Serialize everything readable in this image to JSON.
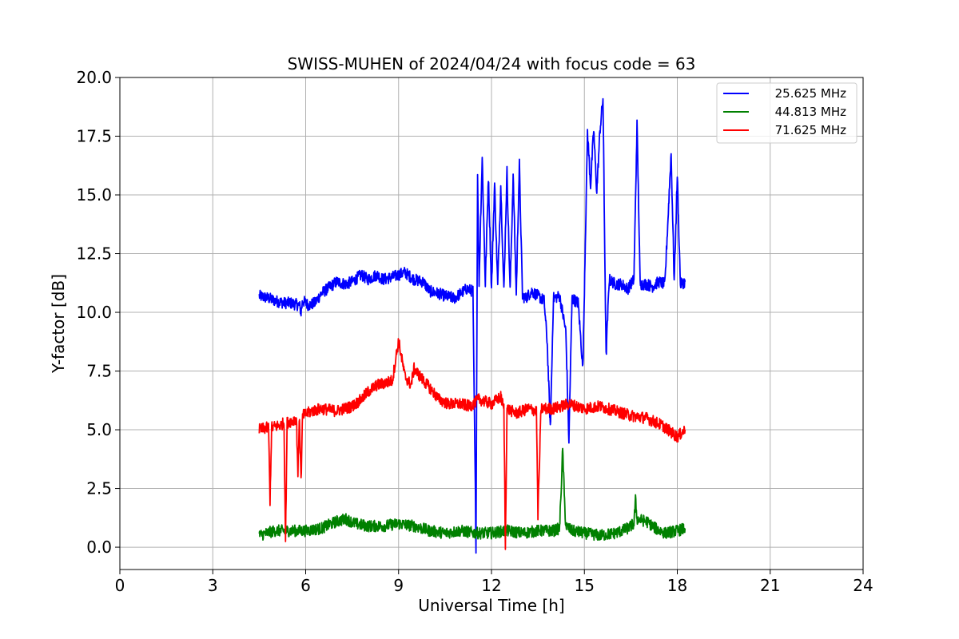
{
  "chart_data": {
    "type": "line",
    "title": "SWISS-MUHEN of 2024/04/24 with focus code = 63",
    "xlabel": "Universal Time [h]",
    "ylabel": "Y-factor [dB]",
    "xlim": [
      0,
      24
    ],
    "ylim": [
      -0.95,
      20.0
    ],
    "xticks": [
      0,
      3,
      6,
      9,
      12,
      15,
      18,
      21,
      24
    ],
    "xtick_labels": [
      "0",
      "3",
      "6",
      "9",
      "12",
      "15",
      "18",
      "21",
      "24"
    ],
    "yticks": [
      0.0,
      2.5,
      5.0,
      7.5,
      10.0,
      12.5,
      15.0,
      17.5,
      20.0
    ],
    "ytick_labels": [
      "0.0",
      "2.5",
      "5.0",
      "7.5",
      "10.0",
      "12.5",
      "15.0",
      "17.5",
      "20.0"
    ],
    "grid": true,
    "legend_position": "top-right",
    "series": [
      {
        "name": "25.625 MHz",
        "color": "#0000ff",
        "x": [
          4.5,
          4.8,
          5.0,
          5.3,
          5.5,
          5.8,
          5.85,
          5.9,
          6.1,
          6.3,
          6.5,
          6.8,
          7.0,
          7.3,
          7.5,
          7.8,
          8.0,
          8.3,
          8.5,
          8.8,
          9.0,
          9.2,
          9.5,
          9.8,
          10.0,
          10.3,
          10.5,
          10.8,
          11.0,
          11.2,
          11.4,
          11.5,
          11.55,
          11.6,
          11.7,
          11.8,
          11.9,
          12.0,
          12.1,
          12.2,
          12.3,
          12.4,
          12.5,
          12.6,
          12.7,
          12.8,
          12.9,
          13.0,
          13.1,
          13.3,
          13.5,
          13.7,
          13.8,
          13.9,
          14.0,
          14.2,
          14.4,
          14.5,
          14.6,
          14.8,
          14.95,
          15.1,
          15.2,
          15.3,
          15.4,
          15.5,
          15.6,
          15.7,
          15.8,
          16.0,
          16.2,
          16.4,
          16.6,
          16.7,
          16.8,
          17.0,
          17.2,
          17.4,
          17.6,
          17.8,
          17.9,
          18.0,
          18.1,
          18.25
        ],
        "y": [
          10.7,
          10.6,
          10.5,
          10.4,
          10.4,
          10.3,
          10.0,
          10.5,
          10.3,
          10.4,
          10.8,
          11.1,
          11.3,
          11.2,
          11.3,
          11.6,
          11.4,
          11.6,
          11.4,
          11.5,
          11.6,
          11.7,
          11.4,
          11.3,
          10.9,
          10.8,
          10.7,
          10.6,
          10.8,
          11.0,
          10.9,
          0.0,
          16.0,
          11.3,
          16.6,
          11.2,
          15.8,
          11.0,
          15.5,
          11.1,
          15.4,
          10.9,
          16.0,
          10.9,
          15.8,
          10.8,
          16.3,
          10.7,
          10.6,
          10.9,
          10.7,
          10.5,
          8.7,
          5.0,
          10.6,
          10.7,
          9.2,
          4.5,
          10.6,
          10.4,
          7.6,
          17.7,
          15.4,
          17.8,
          15.1,
          17.7,
          19.1,
          8.1,
          11.4,
          11.2,
          11.2,
          11.0,
          11.4,
          18.0,
          11.2,
          11.2,
          11.1,
          11.3,
          11.2,
          16.8,
          11.3,
          15.8,
          11.2,
          11.3
        ]
      },
      {
        "name": "44.813 MHz",
        "color": "#008000",
        "x": [
          4.5,
          5.0,
          5.5,
          6.0,
          6.5,
          7.0,
          7.3,
          7.6,
          8.0,
          8.5,
          9.0,
          9.5,
          10.0,
          10.5,
          11.0,
          11.5,
          12.0,
          12.5,
          13.0,
          13.5,
          14.0,
          14.2,
          14.3,
          14.35,
          14.4,
          14.6,
          15.0,
          15.5,
          16.0,
          16.4,
          16.6,
          16.65,
          16.7,
          17.0,
          17.3,
          17.6,
          18.0,
          18.25
        ],
        "y": [
          0.5,
          0.7,
          0.7,
          0.7,
          0.8,
          1.1,
          1.2,
          1.0,
          0.9,
          0.9,
          1.0,
          0.9,
          0.7,
          0.6,
          0.7,
          0.6,
          0.6,
          0.7,
          0.6,
          0.7,
          0.7,
          0.8,
          4.2,
          2.2,
          0.9,
          0.7,
          0.6,
          0.5,
          0.6,
          0.8,
          1.0,
          2.0,
          1.2,
          1.1,
          0.8,
          0.6,
          0.7,
          0.8
        ]
      },
      {
        "name": "71.625 MHz",
        "color": "#ff0000",
        "x": [
          4.5,
          4.8,
          4.85,
          4.9,
          5.2,
          5.3,
          5.35,
          5.4,
          5.6,
          5.7,
          5.75,
          5.8,
          5.85,
          5.9,
          6.2,
          6.5,
          7.0,
          7.5,
          7.8,
          8.0,
          8.3,
          8.6,
          8.8,
          9.0,
          9.2,
          9.4,
          9.5,
          9.8,
          10.0,
          10.3,
          10.6,
          11.0,
          11.3,
          11.6,
          12.0,
          12.3,
          12.4,
          12.45,
          12.5,
          12.8,
          13.2,
          13.45,
          13.5,
          13.6,
          14.0,
          14.5,
          15.0,
          15.5,
          16.0,
          16.5,
          17.0,
          17.5,
          17.8,
          18.0,
          18.25
        ],
        "y": [
          5.0,
          5.1,
          2.0,
          5.1,
          5.2,
          5.3,
          0.3,
          5.3,
          5.4,
          5.5,
          3.2,
          5.6,
          2.8,
          5.6,
          5.8,
          5.9,
          5.8,
          6.0,
          6.3,
          6.6,
          6.9,
          7.0,
          7.1,
          8.8,
          7.3,
          6.9,
          7.6,
          7.1,
          6.8,
          6.3,
          6.1,
          6.1,
          6.0,
          6.3,
          6.1,
          6.4,
          5.9,
          0.0,
          5.9,
          5.7,
          5.9,
          5.8,
          1.4,
          5.9,
          5.9,
          6.1,
          5.9,
          6.0,
          5.8,
          5.6,
          5.5,
          5.2,
          4.9,
          4.7,
          5.0
        ]
      }
    ]
  }
}
